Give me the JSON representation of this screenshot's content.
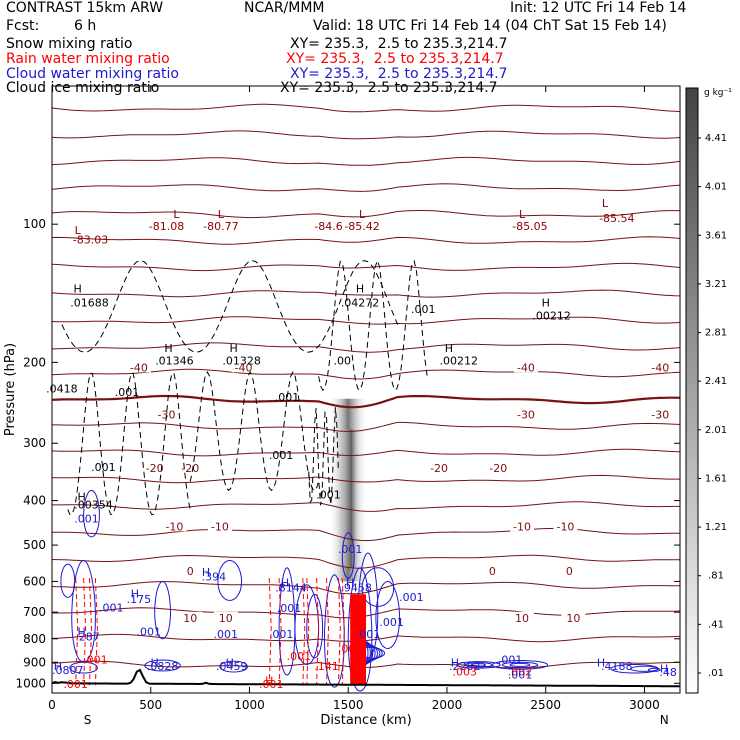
{
  "header": {
    "model": "CONTRAST 15km ARW",
    "org": "NCAR/MMM",
    "init": "Init: 12 UTC Fri 14 Feb 14",
    "fcst_label": "Fcst:",
    "fcst_value": "6 h",
    "valid": "Valid: 18 UTC Fri 14 Feb 14 (04 ChT Sat 15 Feb 14)",
    "fields": [
      {
        "name": "Snow mixing ratio",
        "xy": "XY= 235.3,  2.5 to 235.3,214.7",
        "color": "#000000"
      },
      {
        "name": "Rain water mixing ratio",
        "xy": "XY= 235.3,  2.5 to 235.3,214.7",
        "color": "#ff0000"
      },
      {
        "name": "Cloud water mixing ratio",
        "xy": "XY= 235.3,  2.5 to 235.3,214.7",
        "color": "#1a1ad0"
      },
      {
        "name": "Cloud ice mixing ratio",
        "xy": "XY= 235.3,  2.5 to 235.3,214.7",
        "color": "#000000"
      }
    ]
  },
  "chart_data": {
    "type": "contour-cross-section",
    "xlabel": "Distance (km)",
    "ylabel": "Pressure (hPa)",
    "xlim": [
      0,
      3180
    ],
    "ylim": [
      1050,
      50
    ],
    "y_scale": "log-pressure",
    "x_ticks": [
      0,
      500,
      1000,
      1500,
      2000,
      2500,
      3000
    ],
    "y_ticks": [
      100,
      200,
      300,
      400,
      500,
      600,
      700,
      800,
      900,
      1000
    ],
    "direction_labels": {
      "left": "S",
      "right": "N"
    },
    "colorbar": {
      "unit": "g kg⁻¹",
      "ticks": [
        "4.41",
        "4.01",
        "3.61",
        "3.21",
        "2.81",
        "2.41",
        "2.01",
        "1.61",
        "1.21",
        ".81",
        ".41",
        ".01"
      ]
    },
    "temperature_contours": [
      {
        "value": -40,
        "label": "-40"
      },
      {
        "value": -30,
        "label": "-30"
      },
      {
        "value": -20,
        "label": "-20"
      },
      {
        "value": -10,
        "label": "-10"
      },
      {
        "value": 0,
        "label": "0"
      },
      {
        "value": 10,
        "label": "10"
      }
    ],
    "annotations": [
      {
        "text": "L",
        "x": 130,
        "p": 103,
        "color": "#8b0000"
      },
      {
        "text": "-83.03",
        "x": 195,
        "p": 108,
        "color": "#8b0000"
      },
      {
        "text": "L",
        "x": 630,
        "p": 95,
        "color": "#8b0000"
      },
      {
        "text": "-81.08",
        "x": 580,
        "p": 101,
        "color": "#8b0000"
      },
      {
        "text": "L",
        "x": 855,
        "p": 95,
        "color": "#8b0000"
      },
      {
        "text": "-80.77",
        "x": 855,
        "p": 101,
        "color": "#8b0000"
      },
      {
        "text": "-84.6",
        "x": 1400,
        "p": 101,
        "color": "#8b0000"
      },
      {
        "text": "L",
        "x": 1570,
        "p": 95,
        "color": "#8b0000"
      },
      {
        "text": "-85.42",
        "x": 1570,
        "p": 101,
        "color": "#8b0000"
      },
      {
        "text": "L",
        "x": 2380,
        "p": 95,
        "color": "#8b0000"
      },
      {
        "text": "-85.05",
        "x": 2420,
        "p": 101,
        "color": "#8b0000"
      },
      {
        "text": "L",
        "x": 2800,
        "p": 90,
        "color": "#8b0000"
      },
      {
        "text": "-85.54",
        "x": 2860,
        "p": 97,
        "color": "#8b0000"
      },
      {
        "text": "H",
        "x": 130,
        "p": 138,
        "color": "#000000"
      },
      {
        "text": ".01688",
        "x": 190,
        "p": 148,
        "color": "#000000"
      },
      {
        "text": "H",
        "x": 1560,
        "p": 138,
        "color": "#000000"
      },
      {
        "text": ".04272",
        "x": 1560,
        "p": 148,
        "color": "#000000"
      },
      {
        "text": ".001",
        "x": 1880,
        "p": 153,
        "color": "#000000"
      },
      {
        "text": "H",
        "x": 2500,
        "p": 148,
        "color": "#000000"
      },
      {
        "text": ".00212",
        "x": 2530,
        "p": 158,
        "color": "#000000"
      },
      {
        "text": "H",
        "x": 590,
        "p": 186,
        "color": "#000000"
      },
      {
        "text": ".01346",
        "x": 620,
        "p": 198,
        "color": "#000000"
      },
      {
        "text": "H",
        "x": 920,
        "p": 186,
        "color": "#000000"
      },
      {
        "text": ".01328",
        "x": 960,
        "p": 198,
        "color": "#000000"
      },
      {
        "text": ".00",
        "x": 1470,
        "p": 198,
        "color": "#000000"
      },
      {
        "text": "H",
        "x": 2010,
        "p": 186,
        "color": "#000000"
      },
      {
        "text": ".00212",
        "x": 2060,
        "p": 198,
        "color": "#000000"
      },
      {
        "text": ".0418",
        "x": 50,
        "p": 228,
        "color": "#000000"
      },
      {
        "text": ".001",
        "x": 380,
        "p": 232,
        "color": "#000000"
      },
      {
        "text": ".001",
        "x": 1190,
        "p": 238,
        "color": "#000000"
      },
      {
        "text": ".001",
        "x": 1160,
        "p": 318,
        "color": "#000000"
      },
      {
        "text": ".001",
        "x": 260,
        "p": 338,
        "color": "#000000"
      },
      {
        "text": ".001",
        "x": 1400,
        "p": 388,
        "color": "#000000"
      },
      {
        "text": "H",
        "x": 150,
        "p": 392,
        "color": "#000000"
      },
      {
        "text": ".00354",
        "x": 210,
        "p": 408,
        "color": "#000000"
      },
      {
        "text": ".001",
        "x": 175,
        "p": 438,
        "color": "#1a1ad0"
      },
      {
        "text": ".001",
        "x": 1510,
        "p": 510,
        "color": "#1a1ad0"
      },
      {
        "text": "H",
        "x": 780,
        "p": 572,
        "color": "#1a1ad0"
      },
      {
        "text": ".394",
        "x": 820,
        "p": 586,
        "color": "#1a1ad0"
      },
      {
        "text": "H",
        "x": 1180,
        "p": 603,
        "color": "#1a1ad0"
      },
      {
        "text": ".8144",
        "x": 1210,
        "p": 618,
        "color": "#1a1ad0"
      },
      {
        "text": "H",
        "x": 1510,
        "p": 603,
        "color": "#1a1ad0"
      },
      {
        "text": ".9458",
        "x": 1540,
        "p": 618,
        "color": "#1a1ad0"
      },
      {
        "text": "H",
        "x": 420,
        "p": 638,
        "color": "#1a1ad0"
      },
      {
        "text": ".175",
        "x": 440,
        "p": 655,
        "color": "#1a1ad0"
      },
      {
        "text": ".001",
        "x": 1820,
        "p": 648,
        "color": "#1a1ad0"
      },
      {
        "text": ".001",
        "x": 300,
        "p": 683,
        "color": "#1a1ad0"
      },
      {
        "text": ".001",
        "x": 1200,
        "p": 685,
        "color": "#1a1ad0"
      },
      {
        "text": ".001",
        "x": 1720,
        "p": 735,
        "color": "#1a1ad0"
      },
      {
        "text": ".001",
        "x": 490,
        "p": 772,
        "color": "#1a1ad0"
      },
      {
        "text": ".001",
        "x": 880,
        "p": 782,
        "color": "#1a1ad0"
      },
      {
        "text": ".001",
        "x": 1160,
        "p": 782,
        "color": "#1a1ad0"
      },
      {
        "text": ".001",
        "x": 1600,
        "p": 782,
        "color": "#1a1ad0"
      },
      {
        "text": "H",
        "x": 150,
        "p": 772,
        "color": "#1a1ad0"
      },
      {
        "text": ".287",
        "x": 180,
        "p": 790,
        "color": "#1a1ad0"
      },
      {
        "text": ".001",
        "x": 1510,
        "p": 840,
        "color": "#ff0000"
      },
      {
        "text": ".001",
        "x": 1250,
        "p": 872,
        "color": "#ff0000"
      },
      {
        "text": ".001",
        "x": 220,
        "p": 888,
        "color": "#ff0000"
      },
      {
        "text": "H",
        "x": 30,
        "p": 917,
        "color": "#1a1ad0"
      },
      {
        "text": ".0807",
        "x": 80,
        "p": 935,
        "color": "#1a1ad0"
      },
      {
        "text": "H",
        "x": 520,
        "p": 902,
        "color": "#1a1ad0"
      },
      {
        "text": ".0828",
        "x": 560,
        "p": 918,
        "color": "#1a1ad0"
      },
      {
        "text": "H",
        "x": 900,
        "p": 902,
        "color": "#1a1ad0"
      },
      {
        "text": ".0459",
        "x": 910,
        "p": 918,
        "color": "#1a1ad0"
      },
      {
        "text": ".141",
        "x": 1390,
        "p": 918,
        "color": "#ff0000"
      },
      {
        "text": "H",
        "x": 2040,
        "p": 902,
        "color": "#1a1ad0"
      },
      {
        "text": ".2282",
        "x": 2090,
        "p": 918,
        "color": "#1a1ad0"
      },
      {
        "text": "H",
        "x": 2780,
        "p": 902,
        "color": "#1a1ad0"
      },
      {
        "text": ".4188",
        "x": 2860,
        "p": 918,
        "color": "#1a1ad0"
      },
      {
        "text": ".001",
        "x": 2320,
        "p": 888,
        "color": "#1a1ad0"
      },
      {
        "text": ".003",
        "x": 2090,
        "p": 942,
        "color": "#ff0000"
      },
      {
        "text": ".002",
        "x": 2370,
        "p": 942,
        "color": "#ff0000"
      },
      {
        "text": ".001",
        "x": 2370,
        "p": 958,
        "color": "#1a1ad0"
      },
      {
        "text": "H",
        "x": 3100,
        "p": 928,
        "color": "#1a1ad0"
      },
      {
        "text": ".48",
        "x": 3120,
        "p": 945,
        "color": "#1a1ad0"
      },
      {
        "text": "H",
        "x": 1100,
        "p": 985,
        "color": "#ff0000"
      },
      {
        "text": ".001",
        "x": 1110,
        "p": 1003,
        "color": "#ff0000"
      },
      {
        "text": ".001",
        "x": 120,
        "p": 1003,
        "color": "#ff0000"
      }
    ]
  }
}
